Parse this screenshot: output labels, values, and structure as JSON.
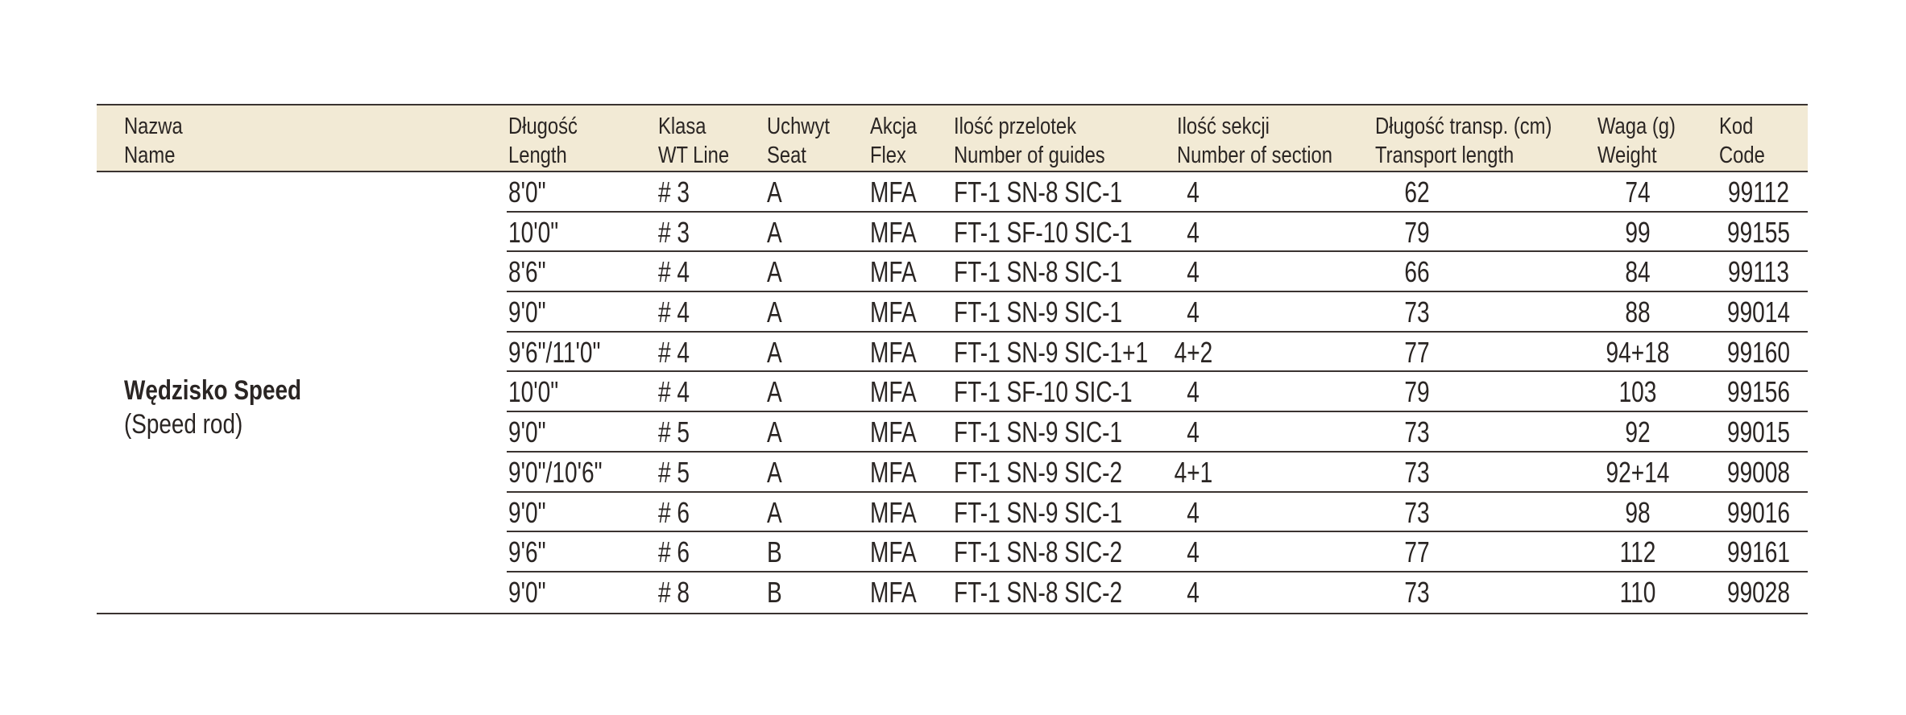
{
  "table": {
    "headers": [
      {
        "pl": "Nazwa",
        "en": "Name"
      },
      {
        "pl": "Długość",
        "en": "Length"
      },
      {
        "pl": "Klasa",
        "en": "WT Line"
      },
      {
        "pl": "Uchwyt",
        "en": "Seat"
      },
      {
        "pl": "Akcja",
        "en": "Flex"
      },
      {
        "pl": "Ilość przelotek",
        "en": "Number of guides"
      },
      {
        "pl": "Ilość sekcji",
        "en": "Number of section"
      },
      {
        "pl": "Długość transp. (cm)",
        "en": "Transport length"
      },
      {
        "pl": "Waga (g)",
        "en": "Weight"
      },
      {
        "pl": "Kod",
        "en": "Code"
      }
    ],
    "product": {
      "name_pl": "Wędzisko Speed",
      "name_en": "(Speed rod)"
    },
    "rows": [
      {
        "length": "8'0\"",
        "line": "# 3",
        "seat": "A",
        "flex": "MFA",
        "guides": "FT-1  SN-8  SIC-1",
        "sections": "4",
        "transport": "62",
        "weight": "74",
        "code": "99112"
      },
      {
        "length": "10'0\"",
        "line": "# 3",
        "seat": "A",
        "flex": "MFA",
        "guides": "FT-1  SF-10  SIC-1",
        "sections": "4",
        "transport": "79",
        "weight": "99",
        "code": "99155"
      },
      {
        "length": "8'6\"",
        "line": "# 4",
        "seat": "A",
        "flex": "MFA",
        "guides": "FT-1  SN-8  SIC-1",
        "sections": "4",
        "transport": "66",
        "weight": "84",
        "code": "99113"
      },
      {
        "length": "9'0\"",
        "line": "# 4",
        "seat": "A",
        "flex": "MFA",
        "guides": "FT-1  SN-9  SIC-1",
        "sections": "4",
        "transport": "73",
        "weight": "88",
        "code": "99014"
      },
      {
        "length": "9'6\"/11'0\"",
        "line": "# 4",
        "seat": "A",
        "flex": "MFA",
        "guides": "FT-1  SN-9  SIC-1+1",
        "sections": "4+2",
        "transport": "77",
        "weight": "94+18",
        "code": "99160"
      },
      {
        "length": "10'0\"",
        "line": "# 4",
        "seat": "A",
        "flex": "MFA",
        "guides": "FT-1  SF-10  SIC-1",
        "sections": "4",
        "transport": "79",
        "weight": "103",
        "code": "99156"
      },
      {
        "length": "9'0\"",
        "line": "# 5",
        "seat": "A",
        "flex": "MFA",
        "guides": "FT-1  SN-9  SIC-1",
        "sections": "4",
        "transport": "73",
        "weight": "92",
        "code": "99015"
      },
      {
        "length": "9'0\"/10'6\"",
        "line": "# 5",
        "seat": "A",
        "flex": "MFA",
        "guides": "FT-1  SN-9  SIC-2",
        "sections": "4+1",
        "transport": "73",
        "weight": "92+14",
        "code": "99008"
      },
      {
        "length": "9'0\"",
        "line": "# 6",
        "seat": "A",
        "flex": "MFA",
        "guides": "FT-1  SN-9  SIC-1",
        "sections": "4",
        "transport": "73",
        "weight": "98",
        "code": "99016"
      },
      {
        "length": "9'6\"",
        "line": "# 6",
        "seat": "B",
        "flex": "MFA",
        "guides": "FT-1  SN-8  SIC-2",
        "sections": "4",
        "transport": "77",
        "weight": "112",
        "code": "99161"
      },
      {
        "length": "9'0\"",
        "line": "# 8",
        "seat": "B",
        "flex": "MFA",
        "guides": "FT-1  SN-8  SIC-2",
        "sections": "4",
        "transport": "73",
        "weight": "110",
        "code": "99028"
      }
    ]
  }
}
